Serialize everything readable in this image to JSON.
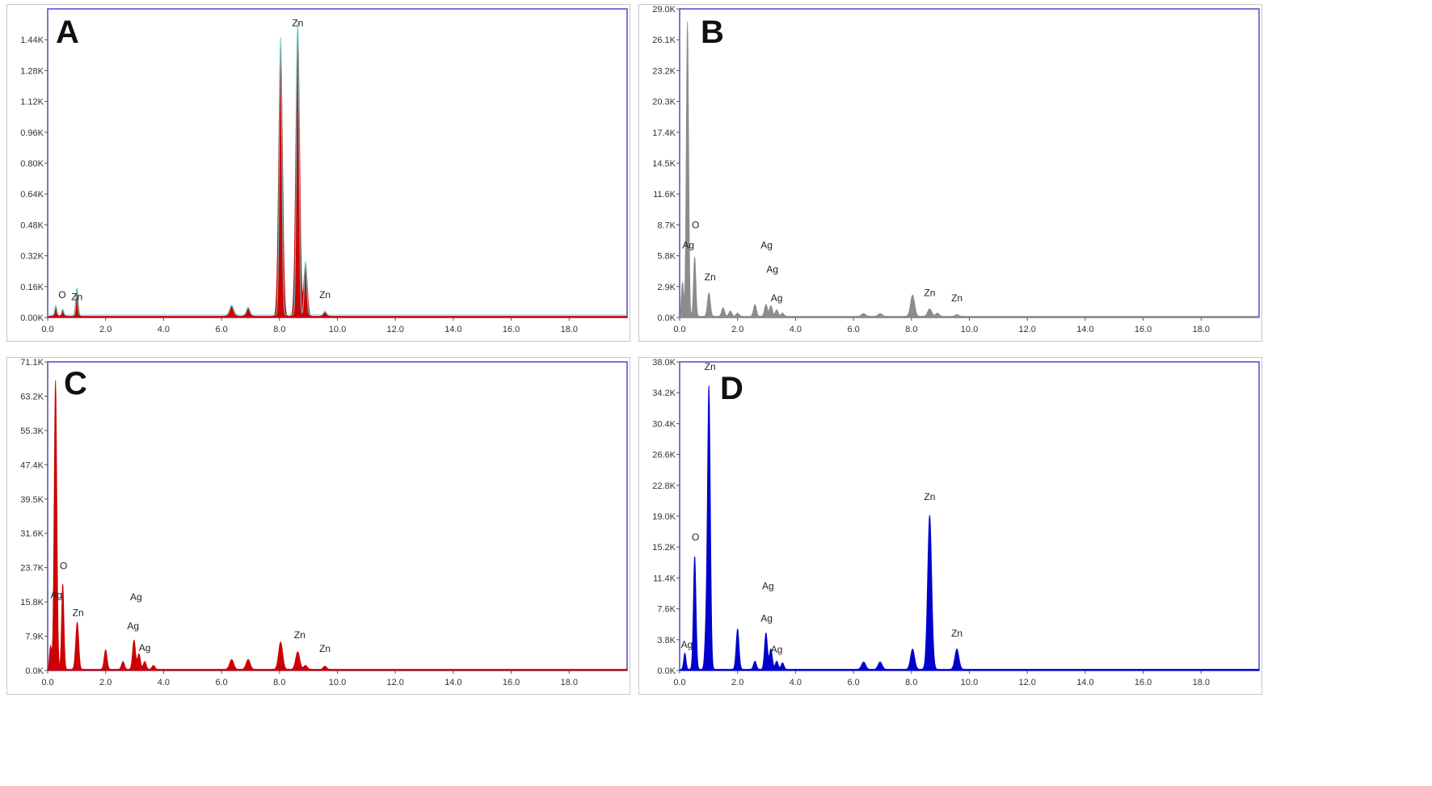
{
  "chart_data": [
    {
      "panel": "A",
      "type": "area",
      "color": "#cc0000",
      "overlay_color": "#5fd3d3",
      "x_ticks": [
        "0.0",
        "2.0",
        "4.0",
        "6.0",
        "8.0",
        "10.0",
        "12.0",
        "14.0",
        "16.0",
        "18.0"
      ],
      "xlim": [
        0,
        20
      ],
      "y_ticks": [
        "0.00K",
        "0.16K",
        "0.32K",
        "0.48K",
        "0.64K",
        "0.80K",
        "0.96K",
        "1.12K",
        "1.28K",
        "1.44K"
      ],
      "ylim": [
        0,
        1.6
      ],
      "peaks": [
        {
          "x": 0.28,
          "y": 0.05,
          "w": 0.04
        },
        {
          "x": 0.52,
          "y": 0.03,
          "w": 0.04
        },
        {
          "x": 1.01,
          "y": 0.14,
          "w": 0.04
        },
        {
          "x": 6.35,
          "y": 0.05,
          "w": 0.08
        },
        {
          "x": 6.92,
          "y": 0.04,
          "w": 0.07
        },
        {
          "x": 8.04,
          "y": 1.4,
          "w": 0.065
        },
        {
          "x": 8.63,
          "y": 1.48,
          "w": 0.065
        },
        {
          "x": 8.9,
          "y": 0.27,
          "w": 0.06
        },
        {
          "x": 9.57,
          "y": 0.02,
          "w": 0.06
        }
      ],
      "peak_labels": [
        {
          "text": "O",
          "x": 0.5,
          "y": 0.1
        },
        {
          "text": "Zn",
          "x": 1.01,
          "y": 0.09
        },
        {
          "text": "Zn",
          "x": 8.63,
          "y": 1.51
        },
        {
          "text": "Zn",
          "x": 9.57,
          "y": 0.1
        }
      ]
    },
    {
      "panel": "B",
      "type": "area",
      "color": "#8c8c8c",
      "x_ticks": [
        "0.0",
        "2.0",
        "4.0",
        "6.0",
        "8.0",
        "10.0",
        "12.0",
        "14.0",
        "16.0",
        "18.0"
      ],
      "xlim": [
        0,
        20
      ],
      "y_ticks": [
        "0.0K",
        "2.9K",
        "5.8K",
        "8.7K",
        "11.6K",
        "14.5K",
        "17.4K",
        "20.3K",
        "23.2K",
        "26.1K",
        "29.0K"
      ],
      "ylim": [
        0,
        29.0
      ],
      "peaks": [
        {
          "x": 0.1,
          "y": 3.2,
          "w": 0.04
        },
        {
          "x": 0.27,
          "y": 27.7,
          "w": 0.04
        },
        {
          "x": 0.52,
          "y": 5.6,
          "w": 0.04
        },
        {
          "x": 1.01,
          "y": 2.2,
          "w": 0.05
        },
        {
          "x": 1.5,
          "y": 0.8,
          "w": 0.05
        },
        {
          "x": 1.75,
          "y": 0.5,
          "w": 0.05
        },
        {
          "x": 2.0,
          "y": 0.3,
          "w": 0.05
        },
        {
          "x": 2.6,
          "y": 1.1,
          "w": 0.05
        },
        {
          "x": 2.98,
          "y": 1.1,
          "w": 0.05
        },
        {
          "x": 3.15,
          "y": 1.0,
          "w": 0.05
        },
        {
          "x": 3.35,
          "y": 0.6,
          "w": 0.05
        },
        {
          "x": 3.55,
          "y": 0.3,
          "w": 0.05
        },
        {
          "x": 6.35,
          "y": 0.25,
          "w": 0.07
        },
        {
          "x": 6.92,
          "y": 0.25,
          "w": 0.07
        },
        {
          "x": 8.04,
          "y": 2.0,
          "w": 0.07
        },
        {
          "x": 8.63,
          "y": 0.7,
          "w": 0.07
        },
        {
          "x": 8.9,
          "y": 0.3,
          "w": 0.06
        },
        {
          "x": 9.57,
          "y": 0.15,
          "w": 0.06
        }
      ],
      "peak_labels": [
        {
          "text": "O",
          "x": 0.55,
          "y": 8.4
        },
        {
          "text": "Ag",
          "x": 0.3,
          "y": 6.5
        },
        {
          "text": "Zn",
          "x": 1.05,
          "y": 3.5
        },
        {
          "text": "Ag",
          "x": 3.0,
          "y": 6.5
        },
        {
          "text": "Ag",
          "x": 3.2,
          "y": 4.2
        },
        {
          "text": "Ag",
          "x": 3.35,
          "y": 1.5
        },
        {
          "text": "Zn",
          "x": 8.63,
          "y": 2.0
        },
        {
          "text": "Zn",
          "x": 9.57,
          "y": 1.5
        }
      ]
    },
    {
      "panel": "C",
      "type": "area",
      "color": "#cc0000",
      "x_ticks": [
        "0.0",
        "2.0",
        "4.0",
        "6.0",
        "8.0",
        "10.0",
        "12.0",
        "14.0",
        "16.0",
        "18.0"
      ],
      "xlim": [
        0,
        20
      ],
      "y_ticks": [
        "0.0K",
        "7.9K",
        "15.8K",
        "23.7K",
        "31.6K",
        "39.5K",
        "47.4K",
        "55.3K",
        "63.2K",
        "71.1K"
      ],
      "ylim": [
        0,
        79.0
      ],
      "peaks": [
        {
          "x": 0.1,
          "y": 6.0,
          "w": 0.04
        },
        {
          "x": 0.27,
          "y": 74.0,
          "w": 0.045
        },
        {
          "x": 0.52,
          "y": 22.0,
          "w": 0.04
        },
        {
          "x": 1.01,
          "y": 10.0,
          "w": 0.05
        },
        {
          "x": 1.05,
          "y": 3.0,
          "w": 0.04
        },
        {
          "x": 2.0,
          "y": 5.0,
          "w": 0.05
        },
        {
          "x": 2.6,
          "y": 2.0,
          "w": 0.05
        },
        {
          "x": 2.98,
          "y": 7.5,
          "w": 0.05
        },
        {
          "x": 3.15,
          "y": 4.0,
          "w": 0.05
        },
        {
          "x": 3.35,
          "y": 2.0,
          "w": 0.05
        },
        {
          "x": 3.65,
          "y": 1.0,
          "w": 0.05
        },
        {
          "x": 6.35,
          "y": 2.5,
          "w": 0.07
        },
        {
          "x": 6.92,
          "y": 2.5,
          "w": 0.07
        },
        {
          "x": 8.04,
          "y": 7.0,
          "w": 0.07
        },
        {
          "x": 8.63,
          "y": 4.5,
          "w": 0.07
        },
        {
          "x": 8.9,
          "y": 1.0,
          "w": 0.06
        },
        {
          "x": 9.57,
          "y": 0.8,
          "w": 0.06
        }
      ],
      "peak_labels": [
        {
          "text": "O",
          "x": 0.55,
          "y": 26.0
        },
        {
          "text": "Ag",
          "x": 0.3,
          "y": 18.5
        },
        {
          "text": "Zn",
          "x": 1.05,
          "y": 14.0
        },
        {
          "text": "Ag",
          "x": 3.05,
          "y": 18.0
        },
        {
          "text": "Ag",
          "x": 2.95,
          "y": 10.5
        },
        {
          "text": "Ag",
          "x": 3.35,
          "y": 5.0
        },
        {
          "text": "Zn",
          "x": 8.7,
          "y": 8.3
        },
        {
          "text": "Zn",
          "x": 9.57,
          "y": 4.8
        }
      ]
    },
    {
      "panel": "D",
      "type": "area",
      "color": "#0000cc",
      "x_ticks": [
        "0.0",
        "2.0",
        "4.0",
        "6.0",
        "8.0",
        "10.0",
        "12.0",
        "14.0",
        "16.0",
        "18.0"
      ],
      "xlim": [
        0,
        20
      ],
      "y_ticks": [
        "0.0K",
        "3.8K",
        "7.6K",
        "11.4K",
        "15.2K",
        "19.0K",
        "22.8K",
        "26.6K",
        "30.4K",
        "34.2K",
        "38.0K"
      ],
      "ylim": [
        0,
        38.0
      ],
      "peaks": [
        {
          "x": 0.18,
          "y": 2.0,
          "w": 0.04
        },
        {
          "x": 0.52,
          "y": 14.0,
          "w": 0.045
        },
        {
          "x": 0.9,
          "y": 3.5,
          "w": 0.04
        },
        {
          "x": 1.01,
          "y": 35.0,
          "w": 0.05
        },
        {
          "x": 2.0,
          "y": 5.0,
          "w": 0.05
        },
        {
          "x": 2.6,
          "y": 1.0,
          "w": 0.05
        },
        {
          "x": 2.98,
          "y": 4.5,
          "w": 0.05
        },
        {
          "x": 3.15,
          "y": 2.5,
          "w": 0.05
        },
        {
          "x": 3.35,
          "y": 1.0,
          "w": 0.05
        },
        {
          "x": 3.55,
          "y": 0.8,
          "w": 0.05
        },
        {
          "x": 6.35,
          "y": 0.9,
          "w": 0.07
        },
        {
          "x": 6.92,
          "y": 0.9,
          "w": 0.07
        },
        {
          "x": 8.04,
          "y": 2.5,
          "w": 0.07
        },
        {
          "x": 8.63,
          "y": 19.0,
          "w": 0.07
        },
        {
          "x": 9.57,
          "y": 2.5,
          "w": 0.07
        }
      ],
      "peak_labels": [
        {
          "text": "O",
          "x": 0.55,
          "y": 16.0
        },
        {
          "text": "Ag",
          "x": 0.25,
          "y": 2.8
        },
        {
          "text": "Zn",
          "x": 1.05,
          "y": 37.0
        },
        {
          "text": "Ag",
          "x": 3.05,
          "y": 10.0
        },
        {
          "text": "Ag",
          "x": 3.0,
          "y": 6.0
        },
        {
          "text": "Ag",
          "x": 3.35,
          "y": 2.2
        },
        {
          "text": "Zn",
          "x": 8.63,
          "y": 21.0
        },
        {
          "text": "Zn",
          "x": 9.57,
          "y": 4.2
        }
      ]
    }
  ]
}
